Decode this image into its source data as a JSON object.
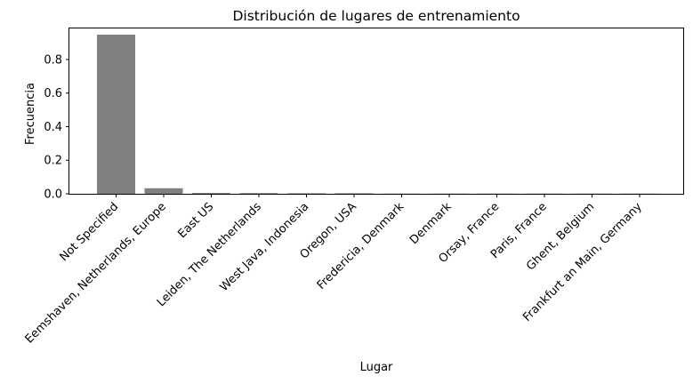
{
  "chart_data": {
    "type": "bar",
    "title": "Distribución de lugares de entrenamiento",
    "xlabel": "Lugar",
    "ylabel": "Frecuencia",
    "categories": [
      "Not Specified",
      "Eemshaven, Netherlands, Europe",
      "East US",
      "Leiden, The Netherlands",
      "West Java, Indonesia",
      "Oregon, USA",
      "Fredericia, Denmark",
      "Denmark",
      "Orsay, France",
      "Paris, France",
      "Ghent, Belgium",
      "Frankfurt an Main, Germany"
    ],
    "values": [
      0.948,
      0.033,
      0.005,
      0.004,
      0.003,
      0.003,
      0.001,
      0.001,
      0.001,
      0.001,
      0.001,
      0.001
    ],
    "ylim": [
      0,
      0.985
    ],
    "yticks": [
      0.0,
      0.2,
      0.4,
      0.6,
      0.8
    ],
    "ytick_labels": [
      "0.0",
      "0.2",
      "0.4",
      "0.6",
      "0.8"
    ],
    "bar_color": "#808080",
    "grid": false
  }
}
